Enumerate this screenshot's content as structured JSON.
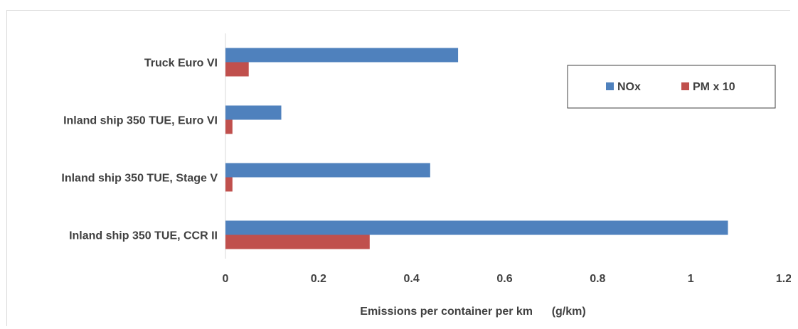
{
  "chart_data": {
    "type": "bar",
    "orientation": "horizontal",
    "categories": [
      "Truck  Euro VI",
      "Inland ship 350 TUE, Euro VI",
      "Inland ship 350 TUE, Stage V",
      "Inland ship 350 TUE, CCR II"
    ],
    "series": [
      {
        "name": "NOx",
        "color": "#4f81bd",
        "values": [
          0.5,
          0.12,
          0.44,
          1.08
        ]
      },
      {
        "name": "PM x 10",
        "color": "#c0504d",
        "values": [
          0.05,
          0.015,
          0.015,
          0.31
        ]
      }
    ],
    "title": "",
    "xlabel": "Emissions per container per km      (g/km)",
    "ylabel": "",
    "xlim": [
      0,
      1.2
    ],
    "x_ticks": [
      "0",
      "0.2",
      "0.4",
      "0.6",
      "0.8",
      "1",
      "1.2"
    ],
    "grid": false,
    "legend_position": "top-right"
  }
}
